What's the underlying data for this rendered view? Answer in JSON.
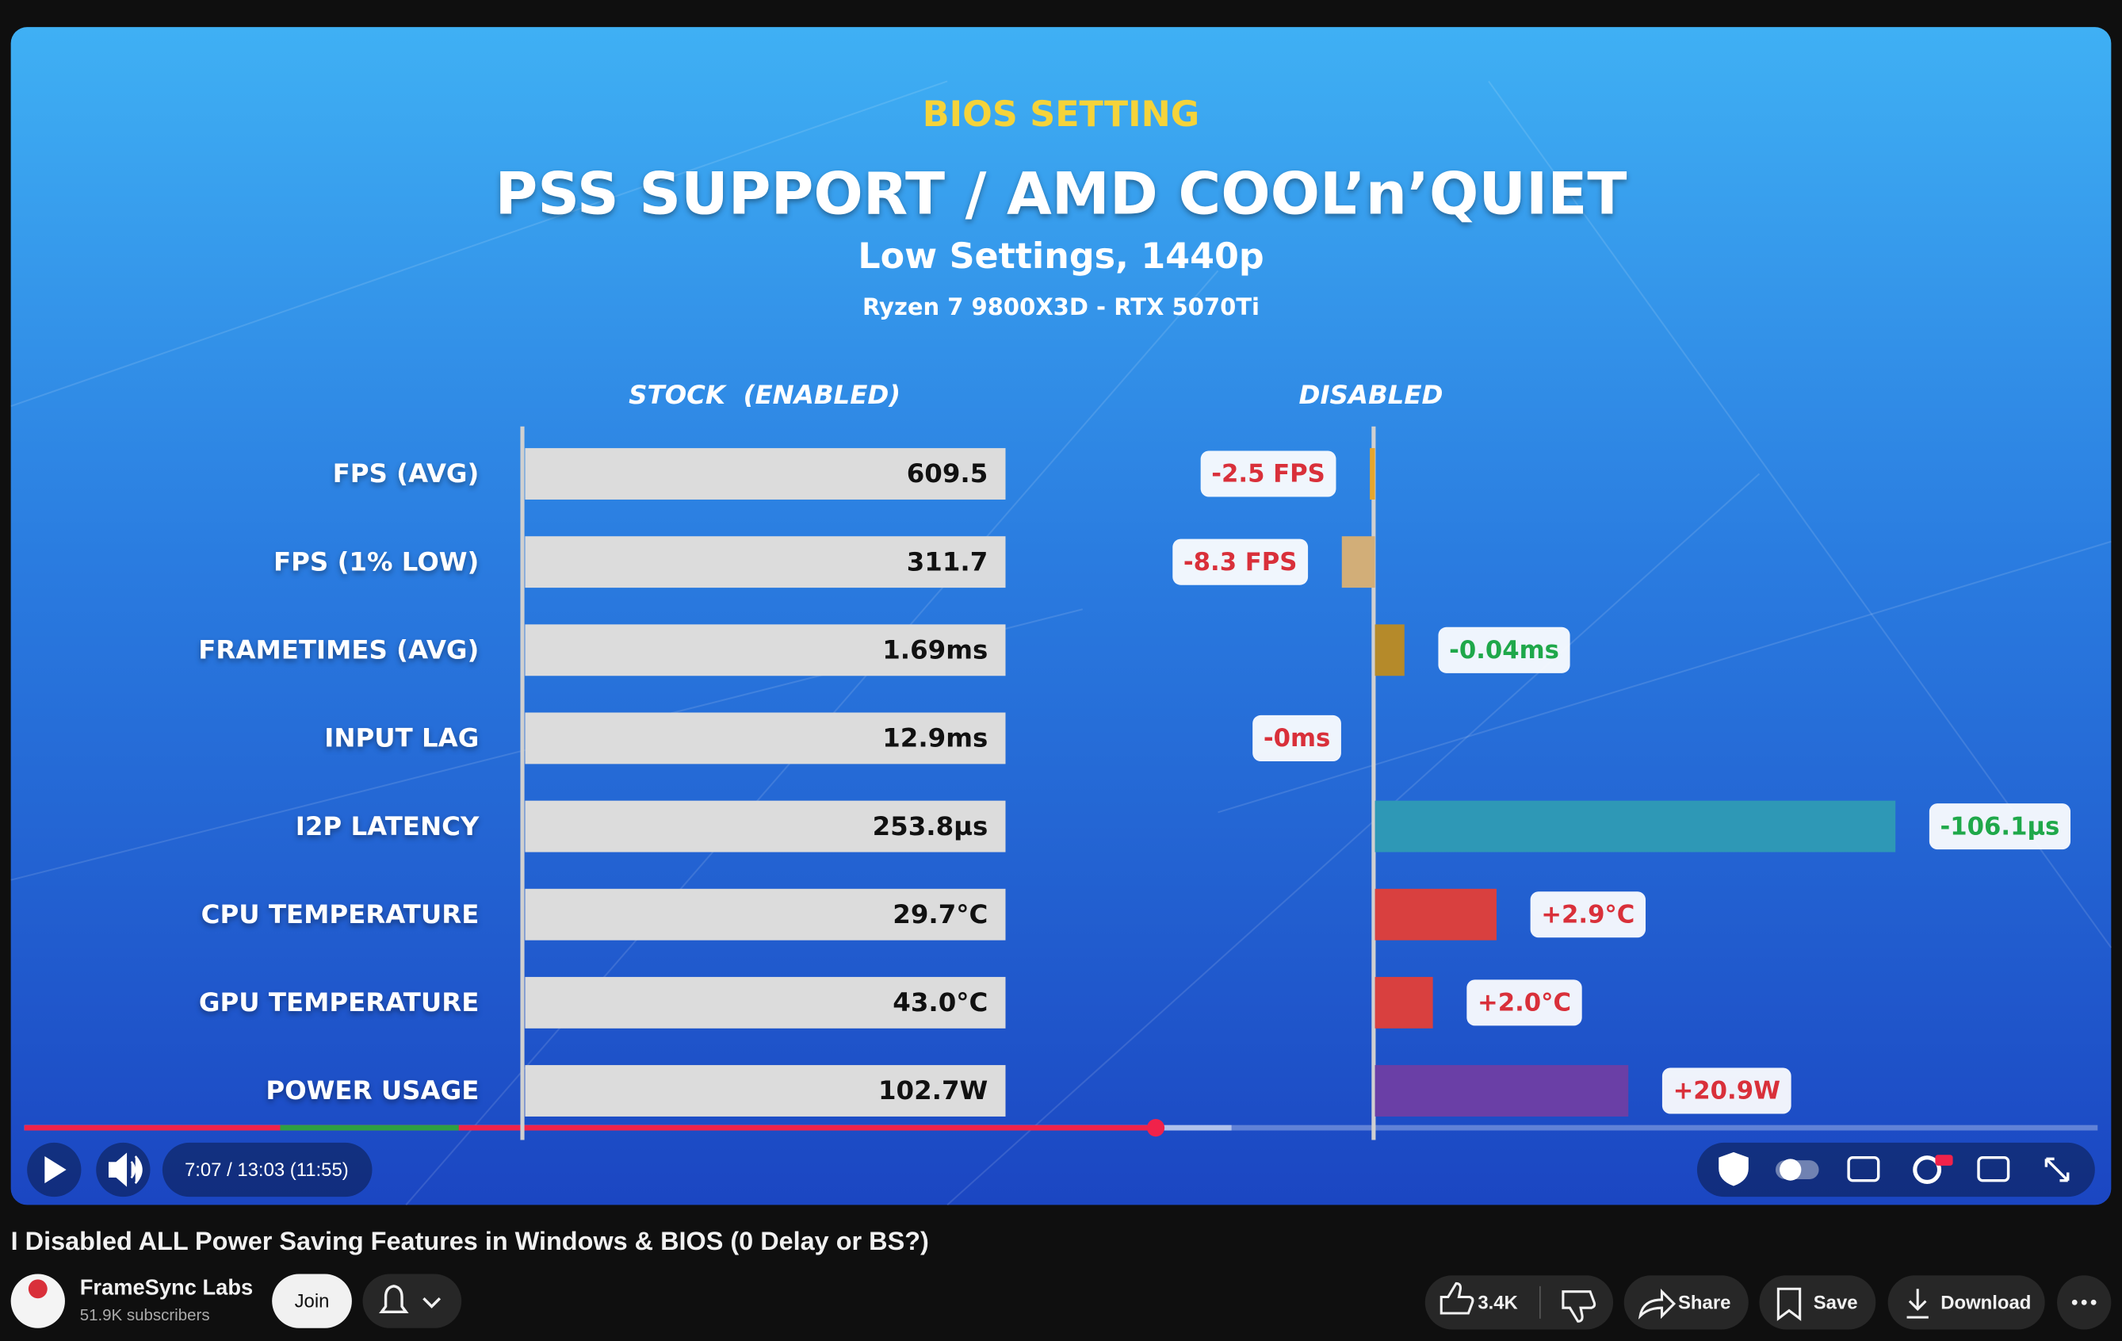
{
  "chart_data": {
    "type": "bar",
    "supertitle": "BIOS SETTING",
    "title": "PSS SUPPORT / AMD COOL’n’QUIET",
    "subtitle": "Low Settings, 1440p",
    "caption": "Ryzen 7 9800X3D - RTX 5070Ti",
    "categories": [
      "FPS (AVG)",
      "FPS (1% LOW)",
      "FRAMETIMES (AVG)",
      "INPUT LAG",
      "I2P LATENCY",
      "CPU TEMPERATURE",
      "GPU TEMPERATURE",
      "POWER USAGE"
    ],
    "series": [
      {
        "name": "STOCK  (ENABLED)",
        "color": "#dcdcdc",
        "values": [
          609.5,
          311.7,
          1.69,
          12.9,
          253.8,
          29.7,
          43.0,
          102.7
        ],
        "value_labels": [
          "609.5",
          "311.7",
          "1.69ms",
          "12.9ms",
          "253.8µs",
          "29.7°C",
          "43.0°C",
          "102.7W"
        ]
      },
      {
        "name": "DISABLED",
        "values": [
          -2.5,
          -8.3,
          -0.04,
          0,
          -106.1,
          2.9,
          2.0,
          20.9
        ],
        "value_labels": [
          "-2.5 FPS",
          "-8.3 FPS",
          "-0.04ms",
          "-0ms",
          "-106.1µs",
          "+2.9°C",
          "+2.0°C",
          "+20.9W"
        ],
        "colors": [
          "#e6a62c",
          "#d2ae78",
          "#b58a2a",
          "#888888",
          "#2e98b6",
          "#d9403f",
          "#d9403f",
          "#6a3fa6"
        ],
        "side": [
          "left",
          "left",
          "right",
          "left",
          "right",
          "right",
          "right",
          "right"
        ],
        "label_colors": [
          "#d9303a",
          "#d9303a",
          "#1fa84a",
          "#d9303a",
          "#1fa84a",
          "#d9303a",
          "#d9303a",
          "#d9303a"
        ]
      }
    ]
  },
  "player": {
    "time": "7:07 / 13:03 (11:55)"
  },
  "video": {
    "title": "I Disabled ALL Power Saving Features in Windows & BIOS (0 Delay or BS?)"
  },
  "channel": {
    "name": "FrameSync Labs",
    "subscribers": "51.9K subscribers",
    "join": "Join"
  },
  "actions": {
    "likes": "3.4K",
    "share": "Share",
    "save": "Save",
    "download": "Download"
  }
}
